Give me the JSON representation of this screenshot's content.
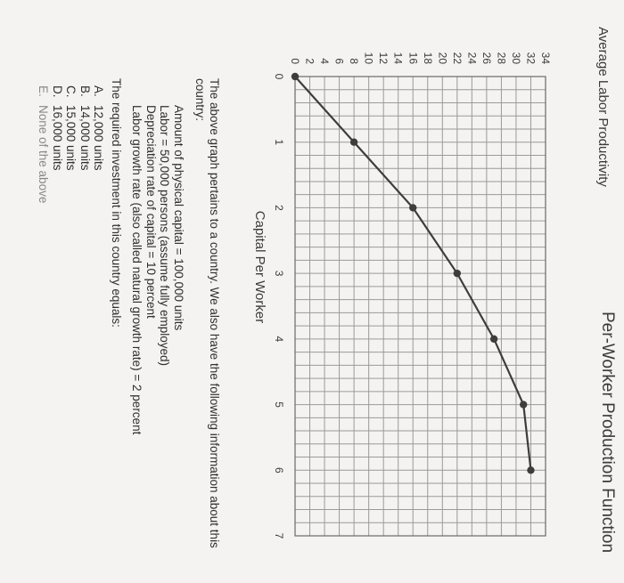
{
  "chart_data": {
    "type": "line",
    "title": "Per-Worker Production Function",
    "xlabel": "Capital Per Worker",
    "ylabel": "Average Labor Productivity",
    "x_ticks": [
      "0",
      "1",
      "2",
      "3",
      "4",
      "5",
      "6",
      "7"
    ],
    "y_ticks": [
      "0",
      "2",
      "4",
      "6",
      "8",
      "10",
      "12",
      "14",
      "16",
      "18",
      "20",
      "22",
      "24",
      "26",
      "28",
      "30",
      "32",
      "34"
    ],
    "xlim": [
      0,
      7
    ],
    "ylim": [
      0,
      34
    ],
    "grid": true,
    "series": [
      {
        "x": [
          0,
          1,
          2,
          3,
          4,
          5,
          6
        ],
        "y": [
          0,
          8,
          16,
          22,
          27,
          31,
          32
        ]
      }
    ]
  },
  "text": {
    "intro": "The above graph pertains to a country. We also have the following information about this country:",
    "facts": [
      "Amount of physical capital = 100,000 units",
      "Labor = 50,000 persons (assume fully employed)",
      "Depreciation rate of capital = 10 percent",
      "Labor growth rate (also called natural growth rate) = 2 percent"
    ],
    "question": "The required investment in this country equals:",
    "options": [
      {
        "letter": "A.",
        "text": "12,000 units"
      },
      {
        "letter": "B.",
        "text": "14,000 units"
      },
      {
        "letter": "C.",
        "text": "15,000 units"
      },
      {
        "letter": "D.",
        "text": "16,000 units"
      },
      {
        "letter": "E.",
        "text": "None of the above"
      }
    ]
  }
}
